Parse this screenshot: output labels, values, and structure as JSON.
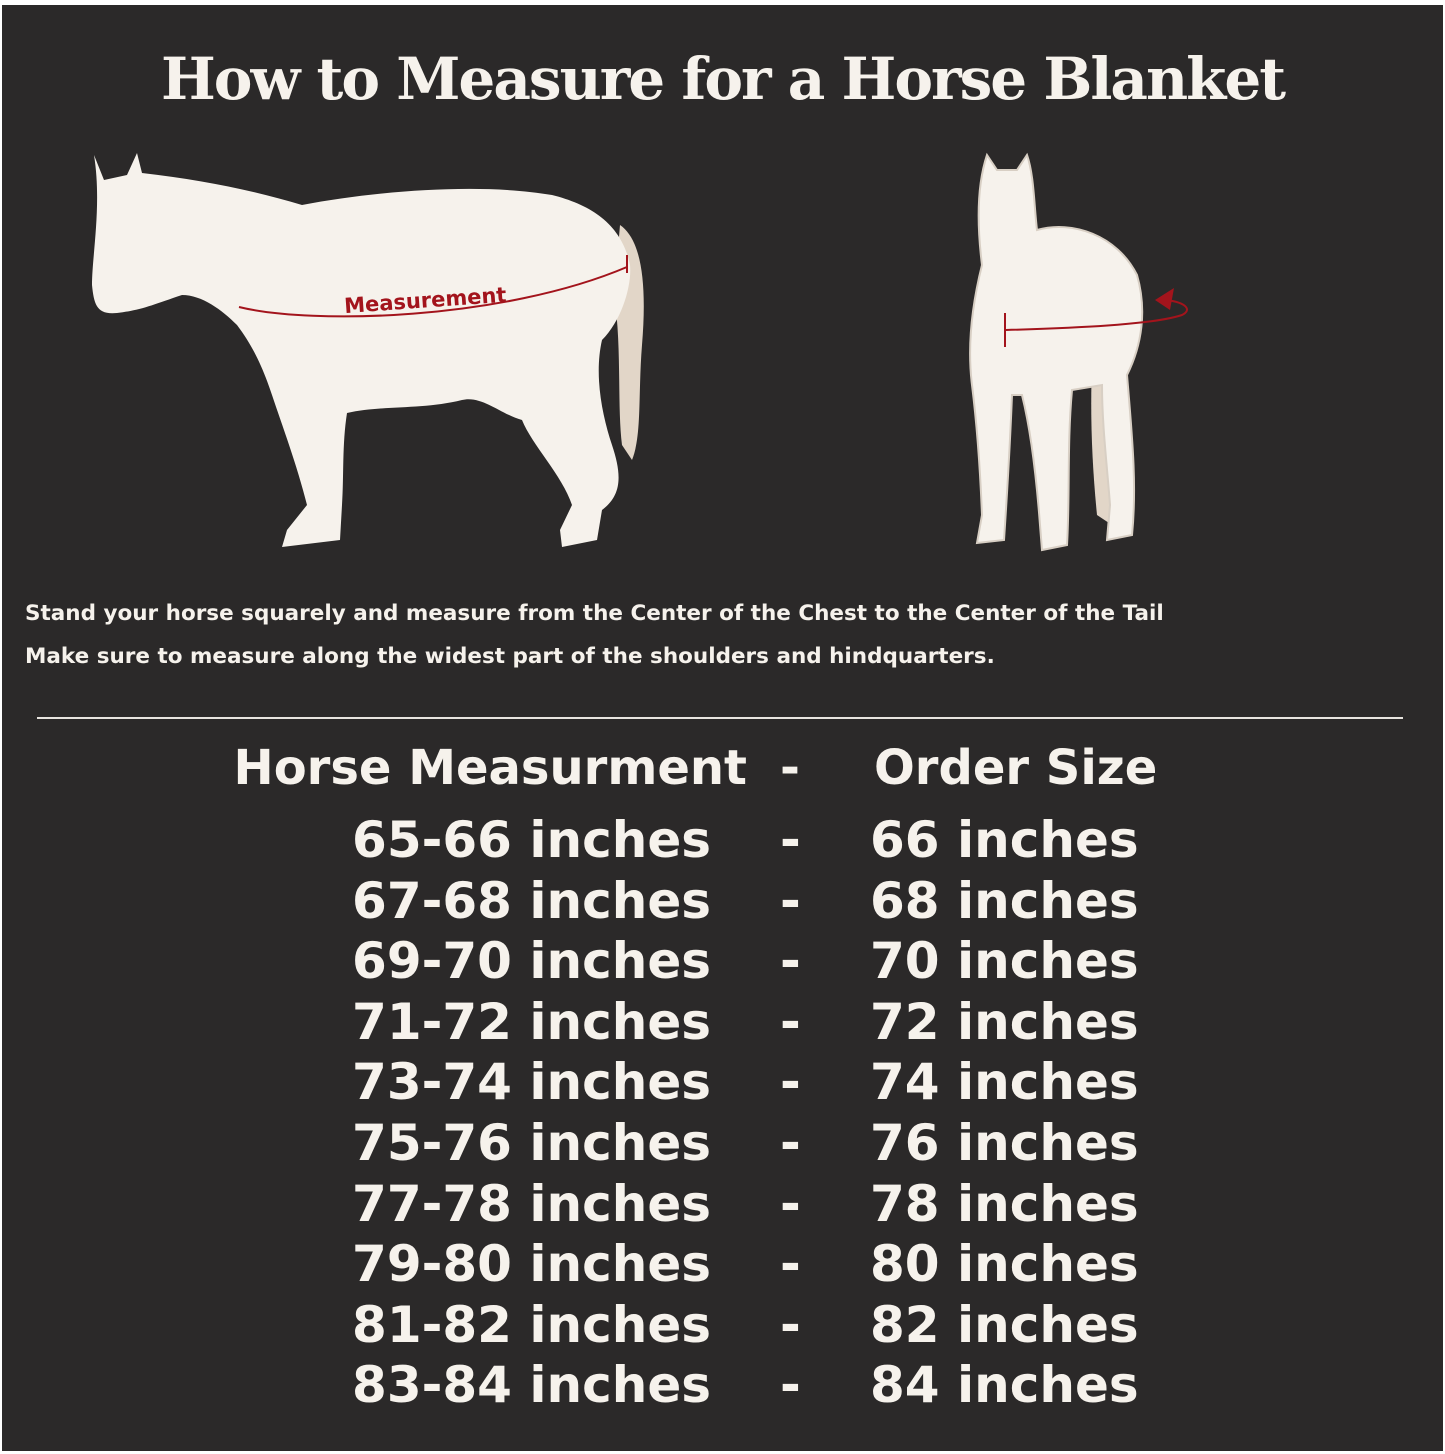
{
  "title": "How to Measure for a Horse Blanket",
  "diagram": {
    "side_label": "Measurement",
    "accent_color": "#a3141c",
    "horse_color": "#f6f2ec"
  },
  "instructions": [
    "Stand your horse squarely and measure from the Center of the Chest to the Center of the Tail",
    "Make sure to measure along the widest part of the shoulders and hindquarters."
  ],
  "table": {
    "headers": [
      "Horse Measurment",
      "-",
      "Order Size"
    ],
    "rows": [
      [
        "65-66 inches",
        "-",
        "66 inches"
      ],
      [
        "67-68 inches",
        "-",
        "68 inches"
      ],
      [
        "69-70 inches",
        "-",
        "70 inches"
      ],
      [
        "71-72 inches",
        "-",
        "72 inches"
      ],
      [
        "73-74 inches",
        "-",
        "74 inches"
      ],
      [
        "75-76 inches",
        "-",
        "76 inches"
      ],
      [
        "77-78 inches",
        "-",
        "78 inches"
      ],
      [
        "79-80 inches",
        "-",
        "80 inches"
      ],
      [
        "81-82 inches",
        "-",
        "82 inches"
      ],
      [
        "83-84 inches",
        "-",
        "84 inches"
      ]
    ]
  }
}
